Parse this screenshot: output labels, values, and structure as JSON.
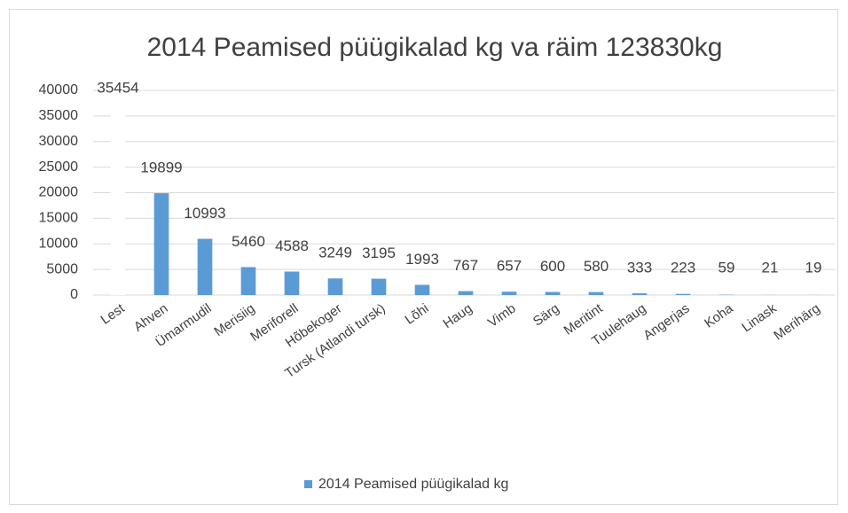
{
  "chart_data": {
    "type": "bar",
    "title": "2014 Peamised püügikalad kg va räim 123830kg",
    "categories": [
      "Lest",
      "Ahven",
      "Ümarmudil",
      "Merisiig",
      "Meriforell",
      "Hõbekoger",
      "Tursk (Atlandi tursk)",
      "Lõhi",
      "Haug",
      "Vimb",
      "Särg",
      "Meritint",
      "Tuulehaug",
      "Angerjas",
      "Koha",
      "Linask",
      "Merihärg"
    ],
    "series": [
      {
        "name": "2014 Peamised püügikalad kg",
        "color": "#5b9bd5",
        "colors": [
          "#ffffff",
          "#5b9bd5",
          "#5b9bd5",
          "#5b9bd5",
          "#5b9bd5",
          "#5b9bd5",
          "#5b9bd5",
          "#5b9bd5",
          "#5b9bd5",
          "#5b9bd5",
          "#5b9bd5",
          "#5b9bd5",
          "#5b9bd5",
          "#5b9bd5",
          "#5b9bd5",
          "#5b9bd5",
          "#5b9bd5"
        ],
        "values": [
          35454,
          19899,
          10993,
          5460,
          4588,
          3249,
          3195,
          1993,
          767,
          657,
          600,
          580,
          333,
          223,
          59,
          21,
          19
        ]
      }
    ],
    "ylim": [
      0,
      40000
    ],
    "yticks": [
      0,
      5000,
      10000,
      15000,
      20000,
      25000,
      30000,
      35000,
      40000
    ],
    "grid": true,
    "legend": "bottom"
  }
}
